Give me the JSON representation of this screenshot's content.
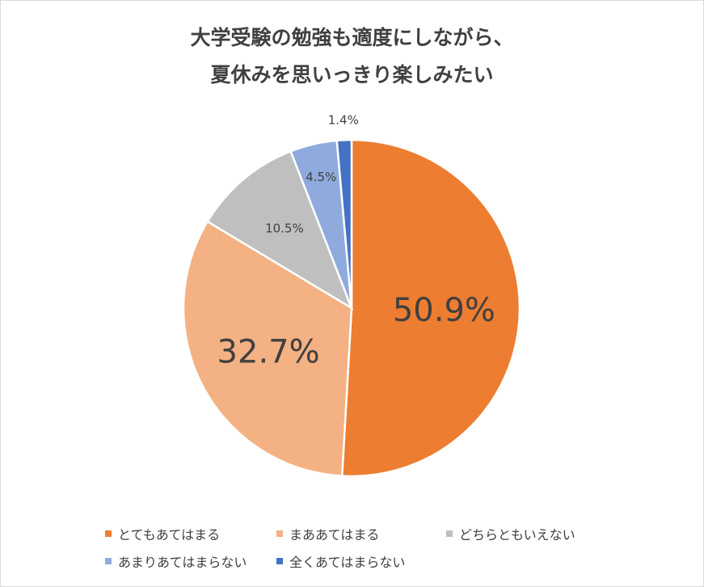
{
  "title": {
    "line1": "大学受験の勉強も適度にしながら、",
    "line2": "夏休みを思いっきり楽しみたい"
  },
  "chart_data": {
    "type": "pie",
    "slices": [
      {
        "name": "とてもあてはまる",
        "value": 50.9,
        "label": "50.9%",
        "color": "#ED7D31"
      },
      {
        "name": "まああてはまる",
        "value": 32.7,
        "label": "32.7%",
        "color": "#F4B183"
      },
      {
        "name": "どちらともいえない",
        "value": 10.5,
        "label": "10.5%",
        "color": "#BFBFBF"
      },
      {
        "name": "あまりあてはまらない",
        "value": 4.5,
        "label": "4.5%",
        "color": "#8FAADC"
      },
      {
        "name": "全くあてはまらない",
        "value": 1.4,
        "label": "1.4%",
        "color": "#4472C4"
      }
    ],
    "legend_position": "bottom"
  }
}
